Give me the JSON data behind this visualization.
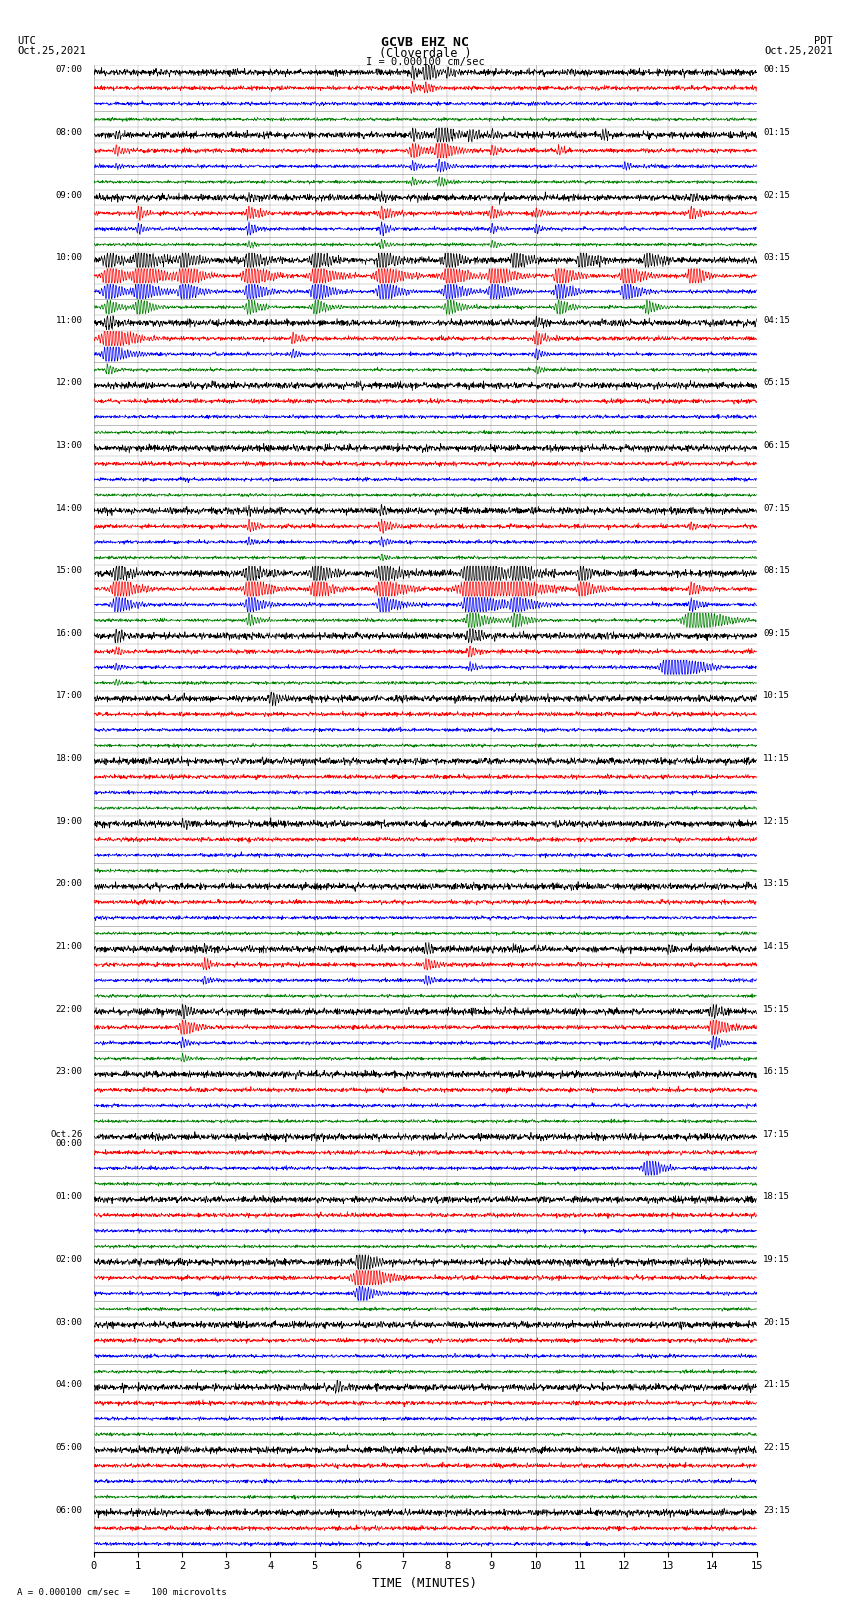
{
  "title_line1": "GCVB EHZ NC",
  "title_line2": "(Cloverdale )",
  "scale_label": "I = 0.000100 cm/sec",
  "label_left_top": "UTC",
  "label_left_date": "Oct.25,2021",
  "label_right_top": "PDT",
  "label_right_date": "Oct.25,2021",
  "xlabel": "TIME (MINUTES)",
  "footer_left": "A",
  "footer_text": "= 0.000100 cm/sec =    100 microvolts",
  "x_ticks": [
    0,
    1,
    2,
    3,
    4,
    5,
    6,
    7,
    8,
    9,
    10,
    11,
    12,
    13,
    14,
    15
  ],
  "utc_labels": [
    "07:00",
    "",
    "",
    "",
    "08:00",
    "",
    "",
    "",
    "09:00",
    "",
    "",
    "",
    "10:00",
    "",
    "",
    "",
    "11:00",
    "",
    "",
    "",
    "12:00",
    "",
    "",
    "",
    "13:00",
    "",
    "",
    "",
    "14:00",
    "",
    "",
    "",
    "15:00",
    "",
    "",
    "",
    "16:00",
    "",
    "",
    "",
    "17:00",
    "",
    "",
    "",
    "18:00",
    "",
    "",
    "",
    "19:00",
    "",
    "",
    "",
    "20:00",
    "",
    "",
    "",
    "21:00",
    "",
    "",
    "",
    "22:00",
    "",
    "",
    "",
    "23:00",
    "",
    "",
    "",
    "Oct.26\n00:00",
    "",
    "",
    "",
    "01:00",
    "",
    "",
    "",
    "02:00",
    "",
    "",
    "",
    "03:00",
    "",
    "",
    "",
    "04:00",
    "",
    "",
    "",
    "05:00",
    "",
    "",
    "",
    "06:00",
    "",
    ""
  ],
  "pdt_labels": [
    "00:15",
    "",
    "",
    "",
    "01:15",
    "",
    "",
    "",
    "02:15",
    "",
    "",
    "",
    "03:15",
    "",
    "",
    "",
    "04:15",
    "",
    "",
    "",
    "05:15",
    "",
    "",
    "",
    "06:15",
    "",
    "",
    "",
    "07:15",
    "",
    "",
    "",
    "08:15",
    "",
    "",
    "",
    "09:15",
    "",
    "",
    "",
    "10:15",
    "",
    "",
    "",
    "11:15",
    "",
    "",
    "",
    "12:15",
    "",
    "",
    "",
    "13:15",
    "",
    "",
    "",
    "14:15",
    "",
    "",
    "",
    "15:15",
    "",
    "",
    "",
    "16:15",
    "",
    "",
    "",
    "17:15",
    "",
    "",
    "",
    "18:15",
    "",
    "",
    "",
    "19:15",
    "",
    "",
    "",
    "20:15",
    "",
    "",
    "",
    "21:15",
    "",
    "",
    "",
    "22:15",
    "",
    "",
    "",
    "23:15",
    "",
    ""
  ],
  "n_rows": 95,
  "n_pts": 1800,
  "row_colors": [
    "black",
    "red",
    "blue",
    "green"
  ],
  "bg_color": "white",
  "grid_color": "#777777",
  "trace_scale": 0.42
}
